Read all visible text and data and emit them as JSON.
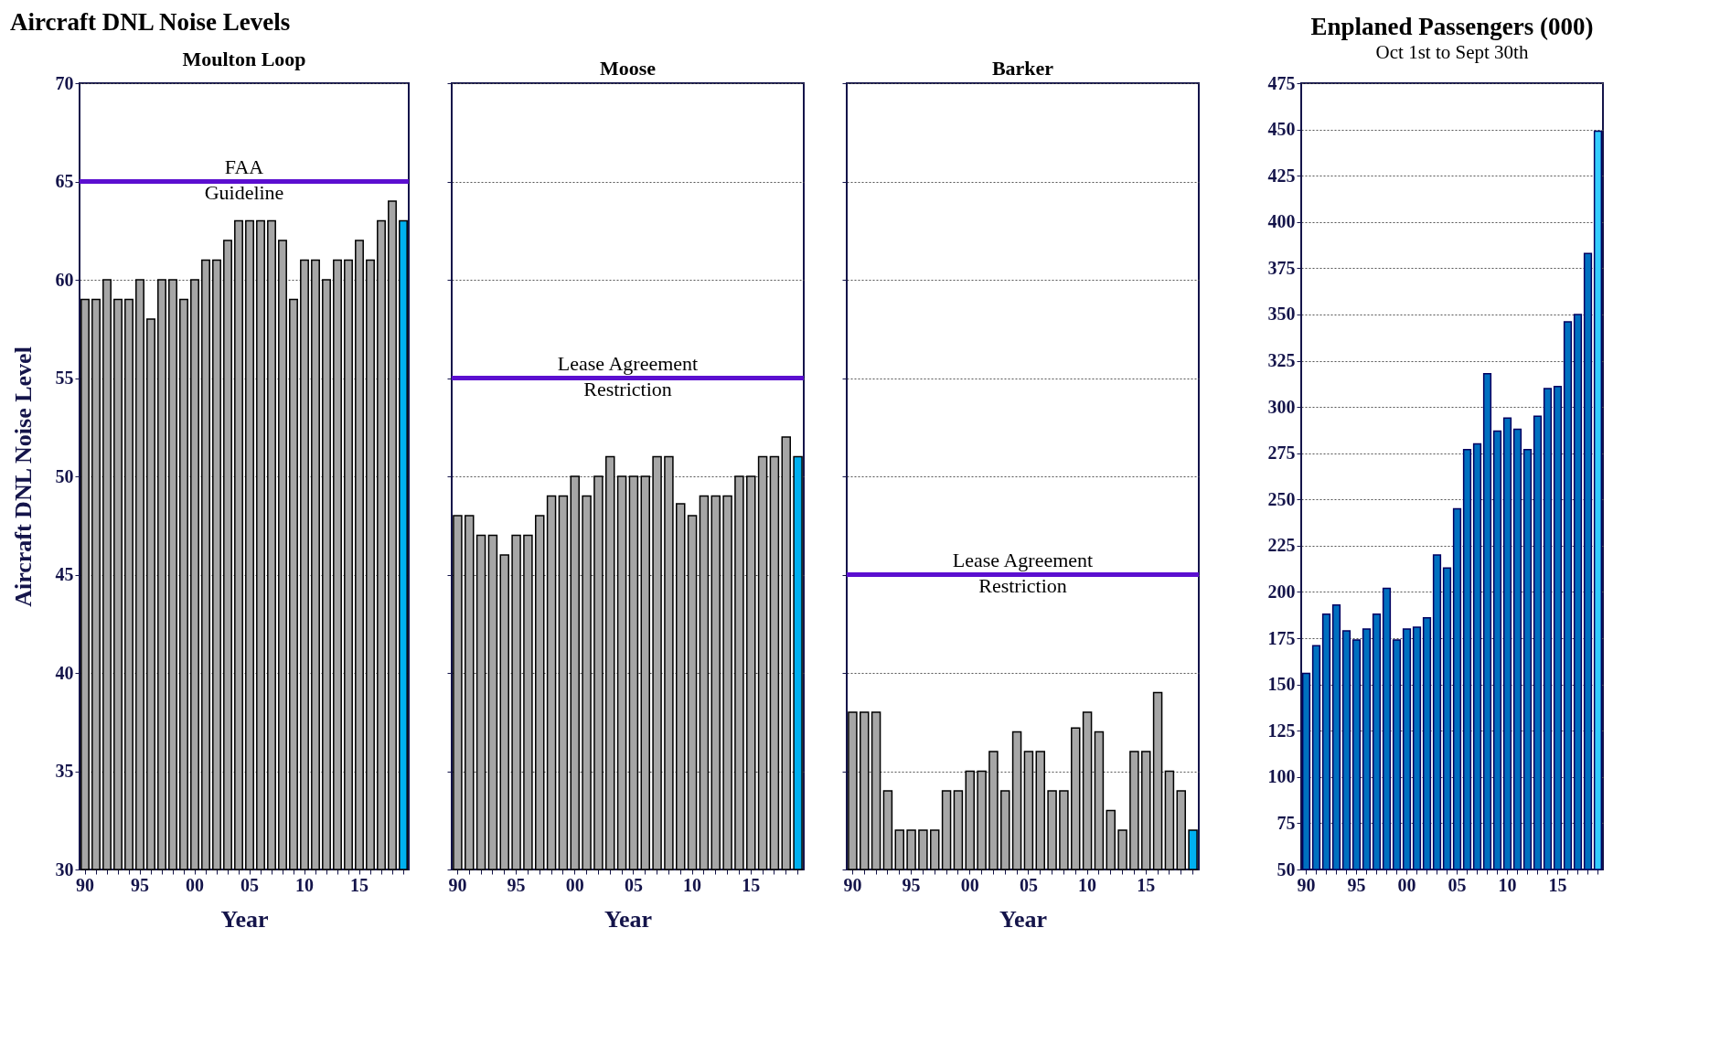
{
  "chart_data": [
    {
      "type": "bar",
      "title": "Aircraft DNL Noise Levels",
      "subtitle": "Moulton Loop",
      "xlabel": "Year",
      "ylabel": "Aircraft DNL Noise Level",
      "categories": [
        "90",
        null,
        null,
        null,
        null,
        "95",
        null,
        null,
        null,
        null,
        "00",
        null,
        null,
        null,
        null,
        "05",
        null,
        null,
        null,
        null,
        "10",
        null,
        null,
        null,
        null,
        "15",
        null,
        null,
        null,
        null
      ],
      "values": [
        59,
        59,
        60,
        59,
        59,
        60,
        58,
        60,
        60,
        59,
        60,
        61,
        61,
        62,
        63,
        63,
        63,
        63,
        62,
        59,
        61,
        61,
        60,
        61,
        61,
        62,
        61,
        63,
        64,
        63
      ],
      "colors": [
        "#a6a6a6",
        "#a6a6a6",
        "#a6a6a6",
        "#a6a6a6",
        "#a6a6a6",
        "#a6a6a6",
        "#a6a6a6",
        "#a6a6a6",
        "#a6a6a6",
        "#a6a6a6",
        "#a6a6a6",
        "#a6a6a6",
        "#a6a6a6",
        "#a6a6a6",
        "#a6a6a6",
        "#a6a6a6",
        "#a6a6a6",
        "#a6a6a6",
        "#a6a6a6",
        "#a6a6a6",
        "#a6a6a6",
        "#a6a6a6",
        "#a6a6a6",
        "#a6a6a6",
        "#a6a6a6",
        "#a6a6a6",
        "#a6a6a6",
        "#a6a6a6",
        "#a6a6a6",
        "#00b0f0"
      ],
      "ylim": [
        30,
        70
      ],
      "yticks": [
        30,
        35,
        40,
        45,
        50,
        55,
        60,
        65,
        70
      ],
      "grid": "y",
      "ref_lines": [
        {
          "axis": "y",
          "value": 65,
          "label": "FAA\nGuideline",
          "color": "#5b0fd0"
        }
      ]
    },
    {
      "type": "bar",
      "subtitle": "Moose",
      "xlabel": "Year",
      "categories": [
        "90",
        null,
        null,
        null,
        null,
        "95",
        null,
        null,
        null,
        null,
        "00",
        null,
        null,
        null,
        null,
        "05",
        null,
        null,
        null,
        null,
        "10",
        null,
        null,
        null,
        null,
        "15",
        null,
        null,
        null,
        null
      ],
      "values": [
        48,
        48,
        47,
        47,
        46,
        47,
        47,
        48,
        49,
        49,
        50,
        49,
        50,
        51,
        50,
        50,
        50,
        51,
        51,
        48.6,
        48,
        49,
        49,
        49,
        50,
        50,
        51,
        51,
        52,
        51
      ],
      "colors": [
        "#a6a6a6",
        "#a6a6a6",
        "#a6a6a6",
        "#a6a6a6",
        "#a6a6a6",
        "#a6a6a6",
        "#a6a6a6",
        "#a6a6a6",
        "#a6a6a6",
        "#a6a6a6",
        "#a6a6a6",
        "#a6a6a6",
        "#a6a6a6",
        "#a6a6a6",
        "#a6a6a6",
        "#a6a6a6",
        "#a6a6a6",
        "#a6a6a6",
        "#a6a6a6",
        "#a6a6a6",
        "#a6a6a6",
        "#a6a6a6",
        "#a6a6a6",
        "#a6a6a6",
        "#a6a6a6",
        "#a6a6a6",
        "#a6a6a6",
        "#a6a6a6",
        "#a6a6a6",
        "#00b0f0"
      ],
      "ylim": [
        30,
        70
      ],
      "yticks": [
        30,
        35,
        40,
        45,
        50,
        55,
        60,
        65,
        70
      ],
      "grid": "y",
      "tick_labels": "x",
      "ref_lines": [
        {
          "axis": "y",
          "value": 55,
          "label": "Lease Agreement\nRestriction",
          "color": "#5b0fd0"
        }
      ]
    },
    {
      "type": "bar",
      "subtitle": "Barker",
      "xlabel": "Year",
      "categories": [
        "90",
        null,
        null,
        null,
        null,
        "95",
        null,
        null,
        null,
        null,
        "00",
        null,
        null,
        null,
        null,
        "05",
        null,
        null,
        null,
        null,
        "10",
        null,
        null,
        null,
        null,
        "15",
        null,
        null,
        null,
        null
      ],
      "values": [
        38,
        38,
        38,
        34,
        32,
        32,
        32,
        32,
        34,
        34,
        35,
        35,
        36,
        34,
        37,
        36,
        36,
        34,
        34,
        37.2,
        38,
        37,
        33,
        32,
        36,
        36,
        39,
        35,
        34,
        32
      ],
      "colors": [
        "#a6a6a6",
        "#a6a6a6",
        "#a6a6a6",
        "#a6a6a6",
        "#a6a6a6",
        "#a6a6a6",
        "#a6a6a6",
        "#a6a6a6",
        "#a6a6a6",
        "#a6a6a6",
        "#a6a6a6",
        "#a6a6a6",
        "#a6a6a6",
        "#a6a6a6",
        "#a6a6a6",
        "#a6a6a6",
        "#a6a6a6",
        "#a6a6a6",
        "#a6a6a6",
        "#a6a6a6",
        "#a6a6a6",
        "#a6a6a6",
        "#a6a6a6",
        "#a6a6a6",
        "#a6a6a6",
        "#a6a6a6",
        "#a6a6a6",
        "#a6a6a6",
        "#a6a6a6",
        "#00b0f0"
      ],
      "ylim": [
        30,
        70
      ],
      "yticks": [
        30,
        35,
        40,
        45,
        50,
        55,
        60,
        65,
        70
      ],
      "grid": "y",
      "tick_labels": "x",
      "ref_lines": [
        {
          "axis": "y",
          "value": 45,
          "label": "Lease Agreement\nRestriction",
          "color": "#5b0fd0"
        }
      ]
    },
    {
      "type": "bar",
      "title": "Enplaned Passengers (000)",
      "subtitle": "Oct 1st to Sept 30th",
      "categories": [
        "90",
        null,
        null,
        null,
        null,
        "95",
        null,
        null,
        null,
        null,
        "00",
        null,
        null,
        null,
        null,
        "05",
        null,
        null,
        null,
        null,
        "10",
        null,
        null,
        null,
        null,
        "15",
        null,
        null,
        null,
        null
      ],
      "values": [
        156,
        171,
        188,
        193,
        179,
        174,
        180,
        188,
        202,
        174,
        180,
        181,
        186,
        220,
        213,
        245,
        277,
        280,
        318,
        287,
        294,
        288,
        277,
        295,
        310,
        311,
        346,
        350,
        383,
        449
      ],
      "colors": [
        "#0070c0",
        "#0070c0",
        "#0070c0",
        "#0070c0",
        "#0070c0",
        "#0070c0",
        "#0070c0",
        "#0070c0",
        "#0070c0",
        "#0070c0",
        "#0070c0",
        "#0070c0",
        "#0070c0",
        "#0070c0",
        "#0070c0",
        "#0070c0",
        "#0070c0",
        "#0070c0",
        "#0070c0",
        "#0070c0",
        "#0070c0",
        "#0070c0",
        "#0070c0",
        "#0070c0",
        "#0070c0",
        "#0070c0",
        "#0070c0",
        "#0070c0",
        "#0070c0",
        "#33ccff"
      ],
      "ylim": [
        50,
        475
      ],
      "yticks": [
        50,
        75,
        100,
        125,
        150,
        175,
        200,
        225,
        250,
        275,
        300,
        325,
        350,
        375,
        400,
        425,
        450,
        475
      ],
      "grid": "y"
    }
  ]
}
